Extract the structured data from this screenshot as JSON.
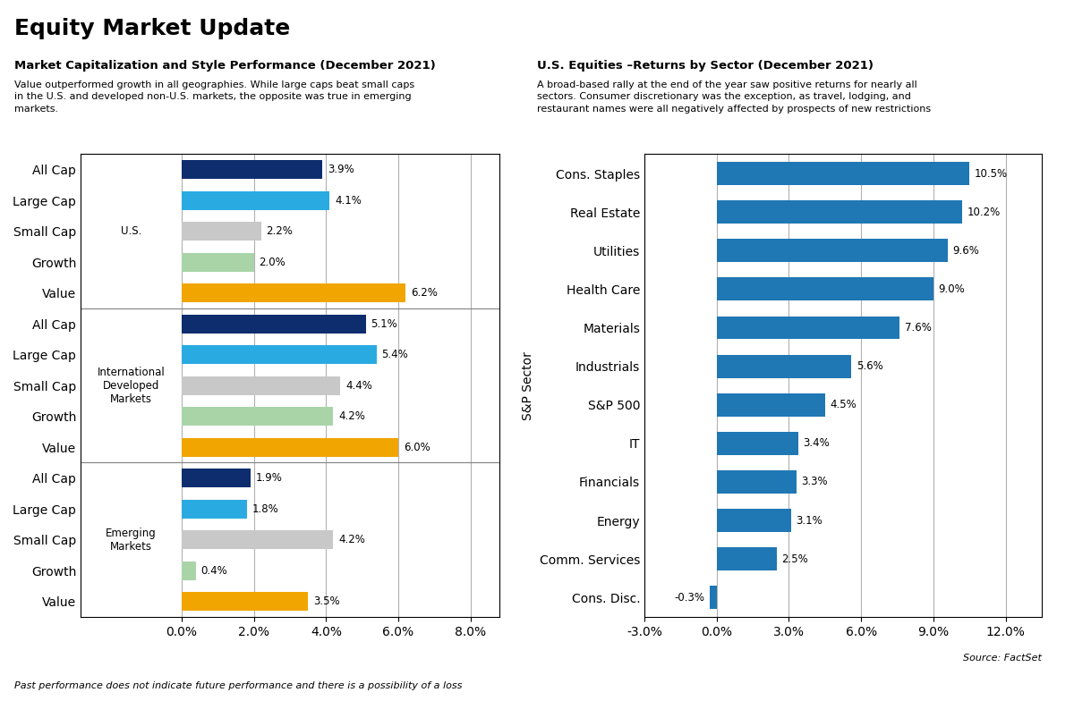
{
  "title": "Equity Market Update",
  "annotations": [
    "Past performance does not indicate future performance and there is a possibility of a loss"
  ],
  "chart_data": [
    {
      "type": "bar",
      "orientation": "horizontal",
      "title": "Market Capitalization and Style Performance (December 2021)",
      "subtitle": "Value outperformed growth in all geographies. While large caps beat small caps\nin the U.S. and developed non-U.S. markets, the opposite was true in emerging\nmarkets.",
      "groups": [
        {
          "label": "U.S.",
          "categories": [
            "All Cap",
            "Large Cap",
            "Small Cap",
            "Growth",
            "Value"
          ],
          "values": [
            3.9,
            4.1,
            2.2,
            2.0,
            6.2
          ],
          "value_labels": [
            "3.9%",
            "4.1%",
            "2.2%",
            "2.0%",
            "6.2%"
          ],
          "colors": [
            "#0d2d6e",
            "#29abe2",
            "#c8c8c8",
            "#a8d4a8",
            "#f0a500"
          ]
        },
        {
          "label": "International\nDeveloped\nMarkets",
          "categories": [
            "All Cap",
            "Large Cap",
            "Small Cap",
            "Growth",
            "Value"
          ],
          "values": [
            5.1,
            5.4,
            4.4,
            4.2,
            6.0
          ],
          "value_labels": [
            "5.1%",
            "5.4%",
            "4.4%",
            "4.2%",
            "6.0%"
          ],
          "colors": [
            "#0d2d6e",
            "#29abe2",
            "#c8c8c8",
            "#a8d4a8",
            "#f0a500"
          ]
        },
        {
          "label": "Emerging\nMarkets",
          "categories": [
            "All Cap",
            "Large Cap",
            "Small Cap",
            "Growth",
            "Value"
          ],
          "values": [
            1.9,
            1.8,
            4.2,
            0.4,
            3.5
          ],
          "value_labels": [
            "1.9%",
            "1.8%",
            "4.2%",
            "0.4%",
            "3.5%"
          ],
          "colors": [
            "#0d2d6e",
            "#29abe2",
            "#c8c8c8",
            "#a8d4a8",
            "#f0a500"
          ]
        }
      ],
      "xlim": [
        -2.8,
        8.8
      ],
      "xticks": [
        {
          "value": 0.0,
          "label": "0.0%"
        },
        {
          "value": 2.0,
          "label": "2.0%"
        },
        {
          "value": 4.0,
          "label": "4.0%"
        },
        {
          "value": 6.0,
          "label": "6.0%"
        },
        {
          "value": 8.0,
          "label": "8.0%"
        }
      ],
      "grid": true,
      "data_labels": true
    },
    {
      "type": "bar",
      "orientation": "horizontal",
      "title": "U.S. Equities –Returns by Sector (December 2021)",
      "subtitle": "A broad-based rally at the end of the year saw positive returns for nearly all\nsectors. Consumer discretionary was the exception, as travel, lodging, and\nrestaurant names were all negatively affected by prospects of new restrictions",
      "ylabel": "S&P Sector",
      "categories": [
        "Cons. Staples",
        "Real Estate",
        "Utilities",
        "Health Care",
        "Materials",
        "Industrials",
        "S&P 500",
        "IT",
        "Financials",
        "Energy",
        "Comm. Services",
        "Cons. Disc."
      ],
      "values": [
        10.5,
        10.2,
        9.6,
        9.0,
        7.6,
        5.6,
        4.5,
        3.4,
        3.3,
        3.1,
        2.5,
        -0.3
      ],
      "value_labels": [
        "10.5%",
        "10.2%",
        "9.6%",
        "9.0%",
        "7.6%",
        "5.6%",
        "4.5%",
        "3.4%",
        "3.3%",
        "3.1%",
        "2.5%",
        "-0.3%"
      ],
      "xlim": [
        -3.0,
        13.5
      ],
      "xticks": [
        {
          "value": -3.0,
          "label": "-3.0%"
        },
        {
          "value": 0.0,
          "label": "0.0%"
        },
        {
          "value": 3.0,
          "label": "3.0%"
        },
        {
          "value": 6.0,
          "label": "6.0%"
        },
        {
          "value": 9.0,
          "label": "9.0%"
        },
        {
          "value": 12.0,
          "label": "12.0%"
        }
      ],
      "grid": true,
      "data_labels": true,
      "annotations": [
        "Source: FactSet"
      ]
    }
  ]
}
